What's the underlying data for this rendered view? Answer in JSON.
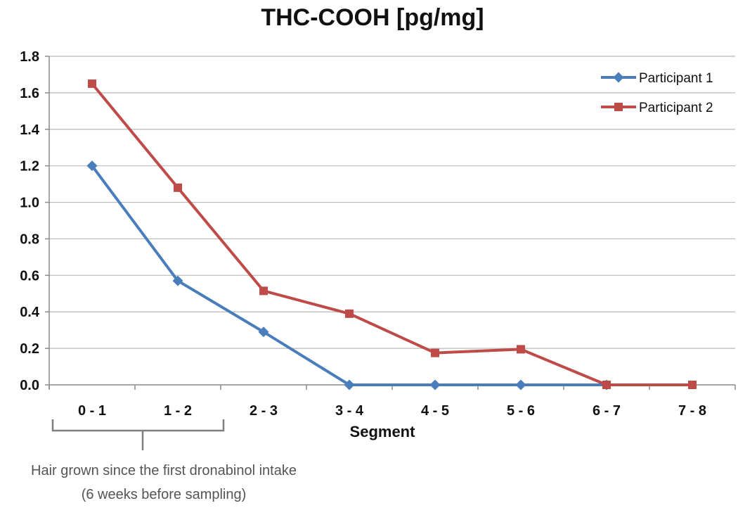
{
  "chart_data": {
    "type": "line",
    "title": "THC-COOH [pg/mg]",
    "xlabel": "Segment",
    "ylabel": "",
    "categories": [
      "0 - 1",
      "1 - 2",
      "2 - 3",
      "3 - 4",
      "4 - 5",
      "5 - 6",
      "6 - 7",
      "7 - 8"
    ],
    "y_ticks": [
      "0.0",
      "0.2",
      "0.4",
      "0.6",
      "0.8",
      "1.0",
      "1.2",
      "1.4",
      "1.6",
      "1.8"
    ],
    "ylim": [
      0,
      1.8
    ],
    "grid": true,
    "legend_position": "top-right",
    "series": [
      {
        "name": "Participant 1",
        "color": "#4a7ebb",
        "marker": "diamond",
        "values": [
          1.2,
          0.57,
          0.29,
          0.0,
          0.0,
          0.0,
          0.0,
          null
        ]
      },
      {
        "name": "Participant 2",
        "color": "#be4b48",
        "marker": "square",
        "values": [
          1.65,
          1.08,
          0.515,
          0.39,
          0.175,
          0.195,
          0.0,
          0.0
        ]
      }
    ],
    "annotation": {
      "line1": "Hair grown since the first dronabinol intake",
      "line2": "(6 weeks before sampling)",
      "span_categories": [
        "0 - 1",
        "1 - 2"
      ]
    }
  }
}
